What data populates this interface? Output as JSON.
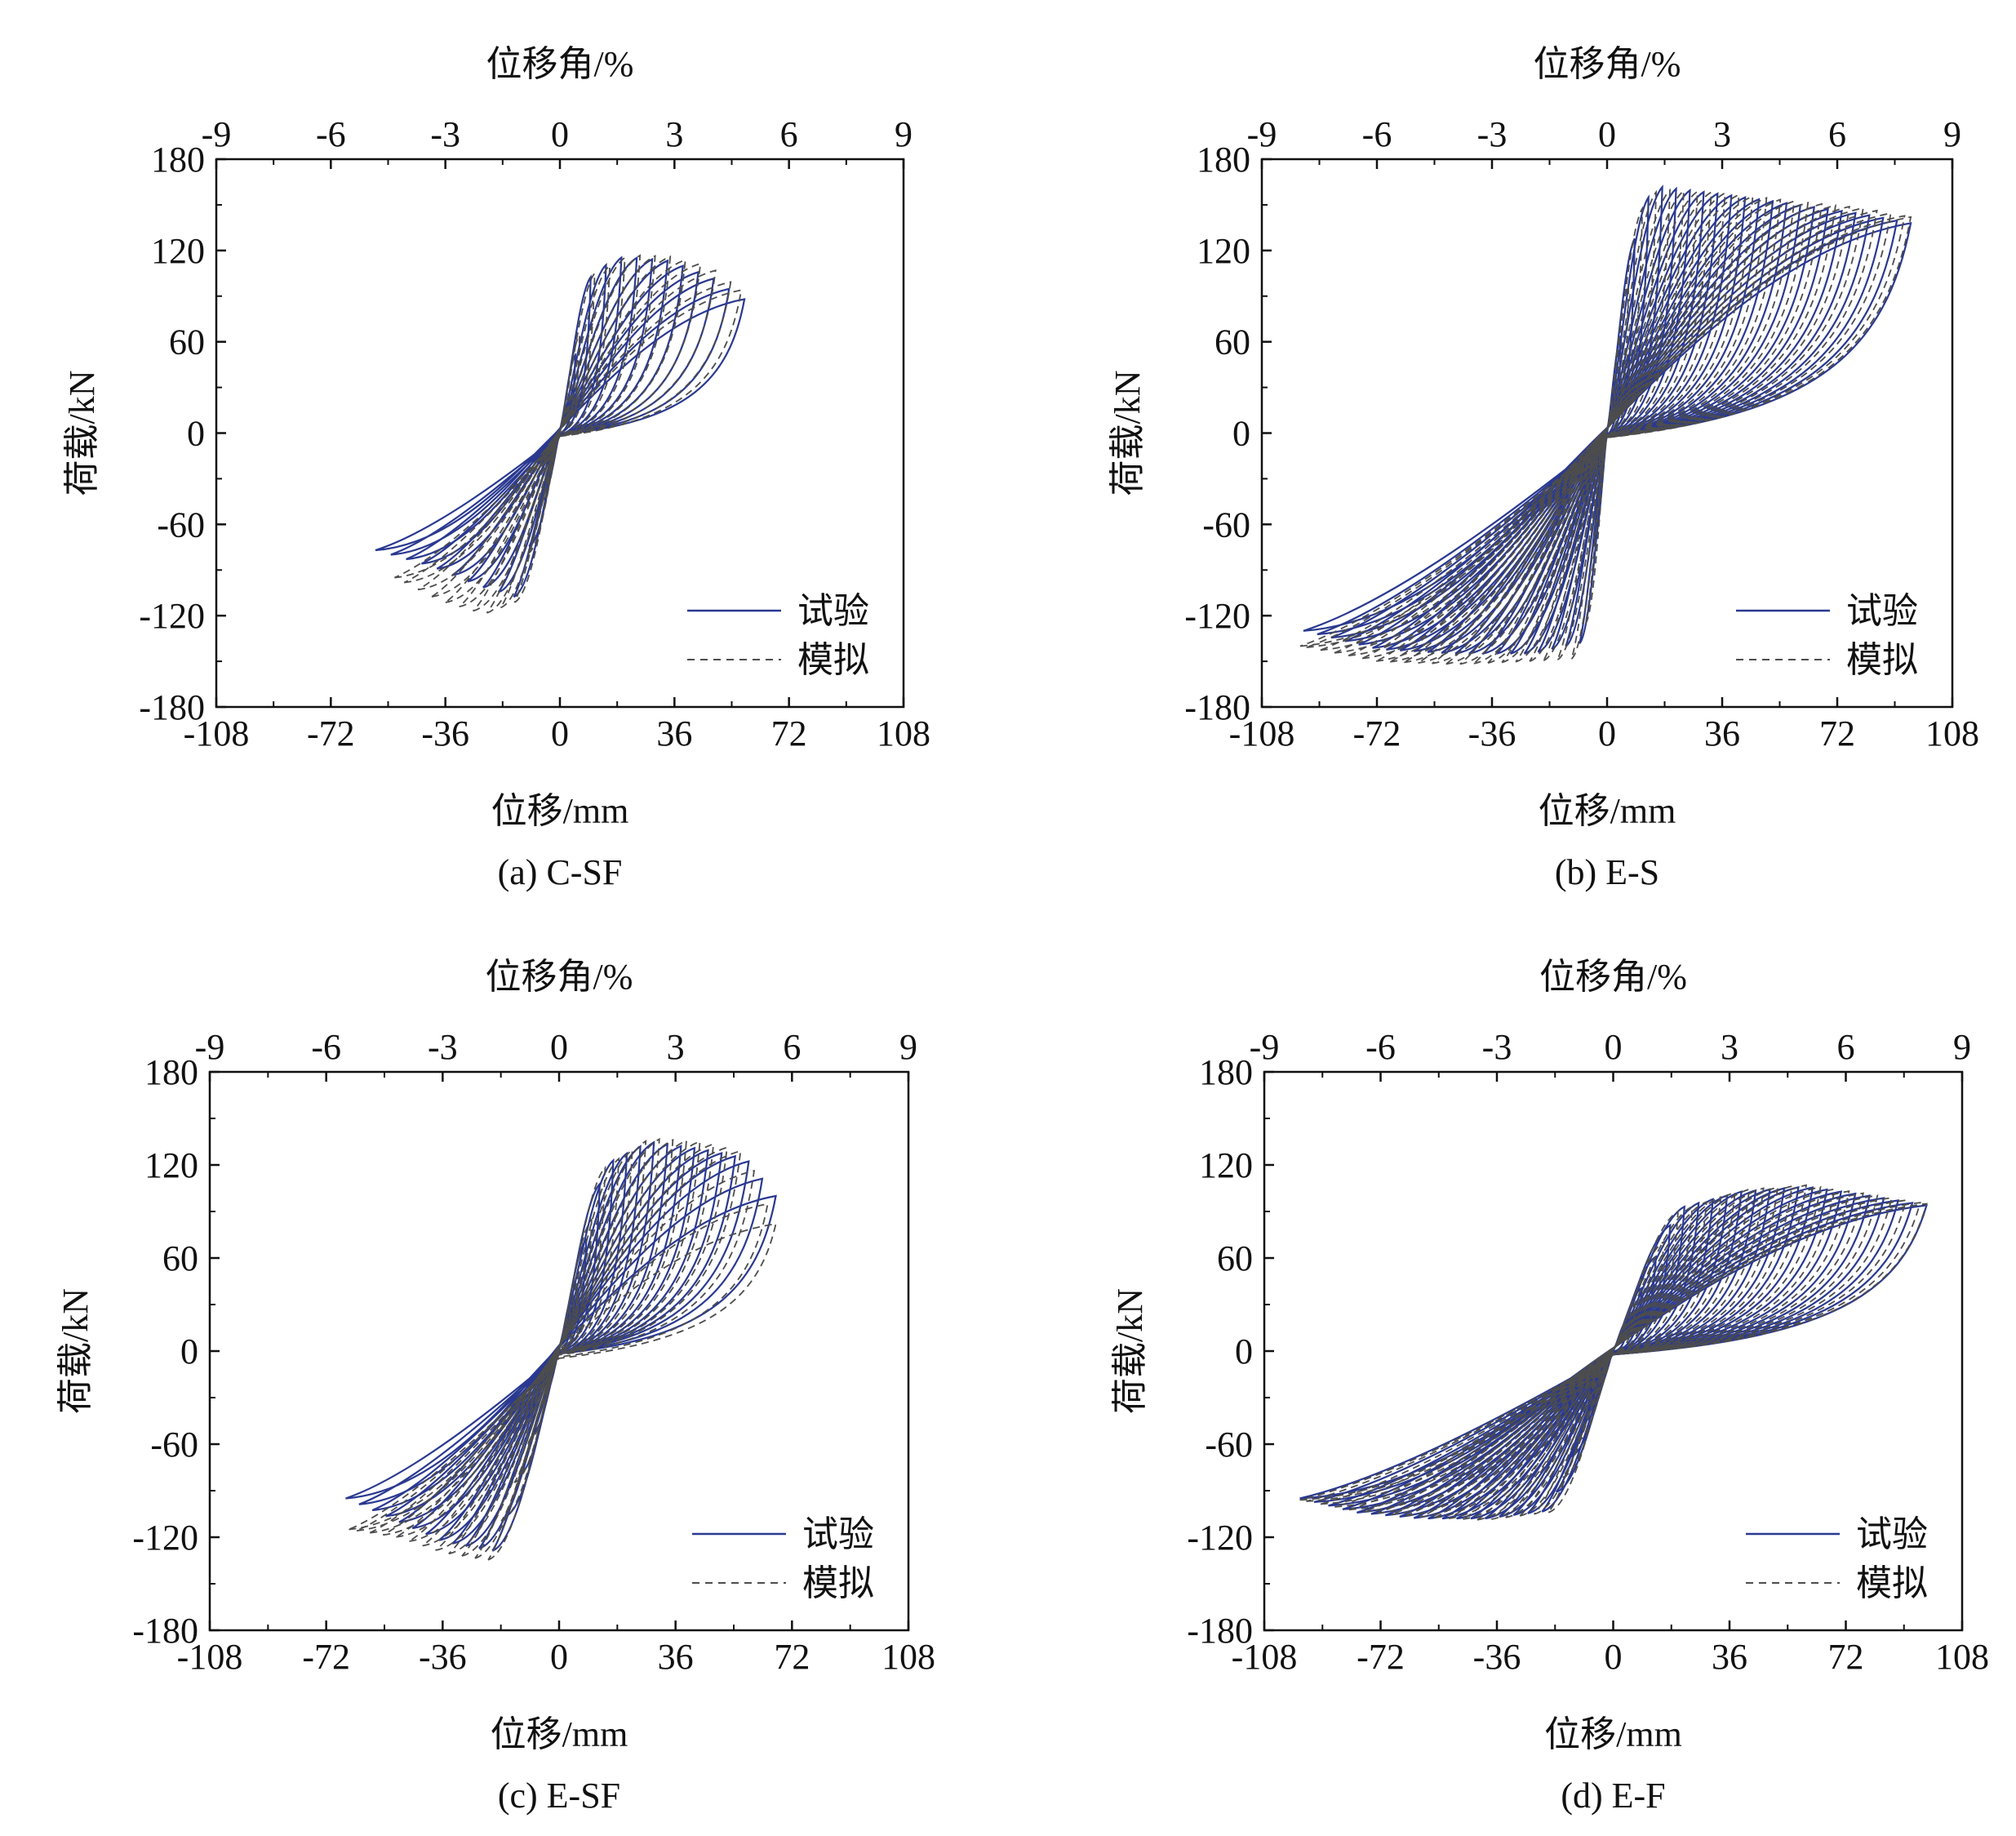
{
  "figure": {
    "legend_test": "试验",
    "legend_sim": "模拟",
    "colors": {
      "test": "#2a3990",
      "sim": "#4d4d4d",
      "axis": "#111111"
    }
  },
  "chart_data": [
    {
      "id": "a",
      "type": "line",
      "caption": "(a) C-SF",
      "xlabel": "位移/mm",
      "ylabel": "荷载/kN",
      "x2label": "位移角/%",
      "xlim": [
        -108,
        108
      ],
      "ylim": [
        -180,
        180
      ],
      "xticks": [
        -108,
        -72,
        -36,
        0,
        36,
        72,
        108
      ],
      "yticks": [
        -180,
        -120,
        -60,
        0,
        60,
        120,
        180
      ],
      "x2ticks": [
        -9,
        -6,
        -3,
        0,
        3,
        6,
        9
      ],
      "legend": "bottom-right",
      "series": [
        {
          "name": "试验",
          "style": "solid",
          "cycles": 12,
          "envelope": [
            [
              -58,
              -77
            ],
            [
              -40,
              -88
            ],
            [
              -25,
              -101
            ],
            [
              -14,
              -108
            ],
            [
              0,
              0
            ],
            [
              10,
              106
            ],
            [
              20,
              116
            ],
            [
              35,
              113
            ],
            [
              48,
              102
            ],
            [
              58,
              88
            ]
          ]
        },
        {
          "name": "模拟",
          "style": "dashed",
          "cycles": 12,
          "envelope": [
            [
              -52,
              -95
            ],
            [
              -38,
              -110
            ],
            [
              -24,
              -119
            ],
            [
              -14,
              -111
            ],
            [
              0,
              0
            ],
            [
              10,
              104
            ],
            [
              22,
              117
            ],
            [
              35,
              116
            ],
            [
              47,
              110
            ],
            [
              57,
              94
            ]
          ]
        }
      ]
    },
    {
      "id": "b",
      "type": "line",
      "caption": "(b) E-S",
      "xlabel": "位移/mm",
      "ylabel": "荷载/kN",
      "x2label": "位移角/%",
      "xlim": [
        -108,
        108
      ],
      "ylim": [
        -180,
        180
      ],
      "xticks": [
        -108,
        -72,
        -36,
        0,
        36,
        72,
        108
      ],
      "yticks": [
        -180,
        -120,
        -60,
        0,
        60,
        120,
        180
      ],
      "x2ticks": [
        -9,
        -6,
        -3,
        0,
        3,
        6,
        9
      ],
      "legend": "bottom-right",
      "series": [
        {
          "name": "试验",
          "style": "solid",
          "cycles": 22,
          "envelope": [
            [
              -95,
              -130
            ],
            [
              -72,
              -142
            ],
            [
              -48,
              -145
            ],
            [
              -24,
              -145
            ],
            [
              -8,
              -138
            ],
            [
              0,
              0
            ],
            [
              10,
              148
            ],
            [
              16,
              162
            ],
            [
              36,
              157
            ],
            [
              60,
              150
            ],
            [
              80,
              144
            ],
            [
              95,
              138
            ]
          ]
        },
        {
          "name": "模拟",
          "style": "dashed",
          "cycles": 22,
          "envelope": [
            [
              -96,
              -140
            ],
            [
              -72,
              -150
            ],
            [
              -48,
              -152
            ],
            [
              -24,
              -150
            ],
            [
              -8,
              -148
            ],
            [
              0,
              0
            ],
            [
              10,
              145
            ],
            [
              16,
              160
            ],
            [
              36,
              158
            ],
            [
              60,
              152
            ],
            [
              80,
              148
            ],
            [
              95,
              142
            ]
          ]
        }
      ]
    },
    {
      "id": "c",
      "type": "line",
      "caption": "(c) E-SF",
      "xlabel": "位移/mm",
      "ylabel": "荷载/kN",
      "x2label": "位移角/%",
      "xlim": [
        -108,
        108
      ],
      "ylim": [
        -180,
        180
      ],
      "xticks": [
        -108,
        -72,
        -36,
        0,
        36,
        72,
        108
      ],
      "yticks": [
        -180,
        -120,
        -60,
        0,
        60,
        120,
        180
      ],
      "x2ticks": [
        -9,
        -6,
        -3,
        0,
        3,
        6,
        9
      ],
      "legend": "bottom-right",
      "series": [
        {
          "name": "试验",
          "style": "solid",
          "cycles": 16,
          "envelope": [
            [
              -66,
              -95
            ],
            [
              -52,
              -108
            ],
            [
              -36,
              -123
            ],
            [
              -20,
              -129
            ],
            [
              0,
              0
            ],
            [
              14,
              120
            ],
            [
              28,
              135
            ],
            [
              45,
              130
            ],
            [
              58,
              124
            ],
            [
              67,
              100
            ]
          ]
        },
        {
          "name": "模拟",
          "style": "dashed",
          "cycles": 16,
          "envelope": [
            [
              -65,
              -115
            ],
            [
              -50,
              -120
            ],
            [
              -36,
              -130
            ],
            [
              -22,
              -135
            ],
            [
              0,
              0
            ],
            [
              14,
              118
            ],
            [
              28,
              137
            ],
            [
              45,
              135
            ],
            [
              58,
              128
            ],
            [
              67,
              82
            ]
          ]
        }
      ]
    },
    {
      "id": "d",
      "type": "line",
      "caption": "(d) E-F",
      "xlabel": "位移/mm",
      "ylabel": "荷载/kN",
      "x2label": "位移角/%",
      "xlim": [
        -108,
        108
      ],
      "ylim": [
        -180,
        180
      ],
      "xticks": [
        -108,
        -72,
        -36,
        0,
        36,
        72,
        108
      ],
      "yticks": [
        -180,
        -120,
        -60,
        0,
        60,
        120,
        180
      ],
      "x2ticks": [
        -9,
        -6,
        -3,
        0,
        3,
        6,
        9
      ],
      "legend": "bottom-right",
      "series": [
        {
          "name": "试验",
          "style": "solid",
          "cycles": 22,
          "envelope": [
            [
              -97,
              -95
            ],
            [
              -80,
              -104
            ],
            [
              -60,
              -108
            ],
            [
              -40,
              -108
            ],
            [
              -20,
              -103
            ],
            [
              0,
              0
            ],
            [
              20,
              92
            ],
            [
              40,
              103
            ],
            [
              60,
              106
            ],
            [
              80,
              100
            ],
            [
              97,
              94
            ]
          ]
        },
        {
          "name": "模拟",
          "style": "dashed",
          "cycles": 22,
          "envelope": [
            [
              -97,
              -96
            ],
            [
              -80,
              -103
            ],
            [
              -60,
              -107
            ],
            [
              -40,
              -109
            ],
            [
              -20,
              -104
            ],
            [
              0,
              0
            ],
            [
              20,
              90
            ],
            [
              40,
              104
            ],
            [
              60,
              107
            ],
            [
              80,
              101
            ],
            [
              97,
              95
            ]
          ]
        }
      ]
    }
  ]
}
